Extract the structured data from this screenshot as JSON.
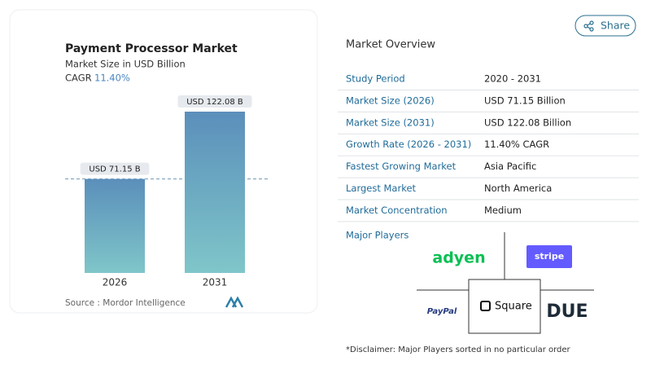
{
  "chart_data": {
    "type": "bar",
    "title": "Payment Processor Market",
    "subtitle": "Market Size in USD Billion",
    "cagr_label": "CAGR",
    "cagr": "11.40%",
    "categories": [
      "2026",
      "2031"
    ],
    "values": [
      71.15,
      122.08
    ],
    "value_labels": [
      "USD 71.15 B",
      "USD 122.08 B"
    ],
    "source": "Source : Mordor Intelligence"
  },
  "header": {
    "share": "Share"
  },
  "overview": {
    "title": "Market Overview",
    "rows": [
      [
        "Study Period",
        "2020 - 2031"
      ],
      [
        "Market Size (2026)",
        "USD 71.15 Billion"
      ],
      [
        "Market Size (2031)",
        "USD 122.08 Billion"
      ],
      [
        "Growth Rate (2026 - 2031)",
        "11.40% CAGR"
      ],
      [
        "Fastest Growing Market",
        "Asia Pacific"
      ],
      [
        "Largest Market",
        "North America"
      ],
      [
        "Market Concentration",
        "Medium"
      ]
    ]
  },
  "players": {
    "title": "Major Players",
    "logos": [
      "adyen",
      "stripe",
      "PayPal",
      "Square",
      "DUE"
    ]
  },
  "disclaimer": "*Disclaimer: Major Players sorted in no particular order"
}
